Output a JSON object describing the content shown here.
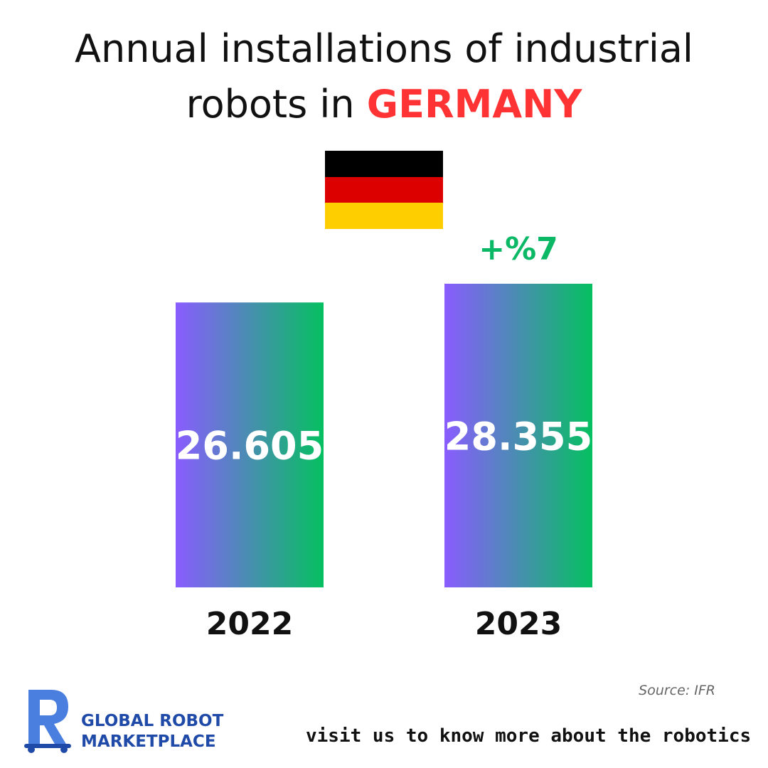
{
  "title": {
    "line1": "Annual installations of industrial",
    "line2_prefix": "robots in ",
    "line2_highlight": "GERMANY",
    "highlight_color": "#ff3333"
  },
  "flag": {
    "country": "Germany",
    "colors": [
      "#000000",
      "#dd0000",
      "#ffce00"
    ]
  },
  "chart_data": {
    "type": "bar",
    "categories": [
      "2022",
      "2023"
    ],
    "values": [
      26605,
      28355
    ],
    "value_labels": [
      "26.605",
      "28.355"
    ],
    "annotation": {
      "text": "+%7",
      "category": "2023",
      "color": "#0ab865"
    },
    "bar_gradient": [
      "#8a5cff",
      "#05c060"
    ],
    "ylim": [
      0,
      28355
    ],
    "grid": false,
    "title": "",
    "xlabel": "",
    "ylabel": ""
  },
  "source": "Source: IFR",
  "logo": {
    "icon": "robot-letter-r-icon",
    "line1": "GLOBAL ROBOT",
    "line2": "MARKETPLACE",
    "color": "#1f4aa8"
  },
  "tagline": "visit us to know more about the robotics"
}
